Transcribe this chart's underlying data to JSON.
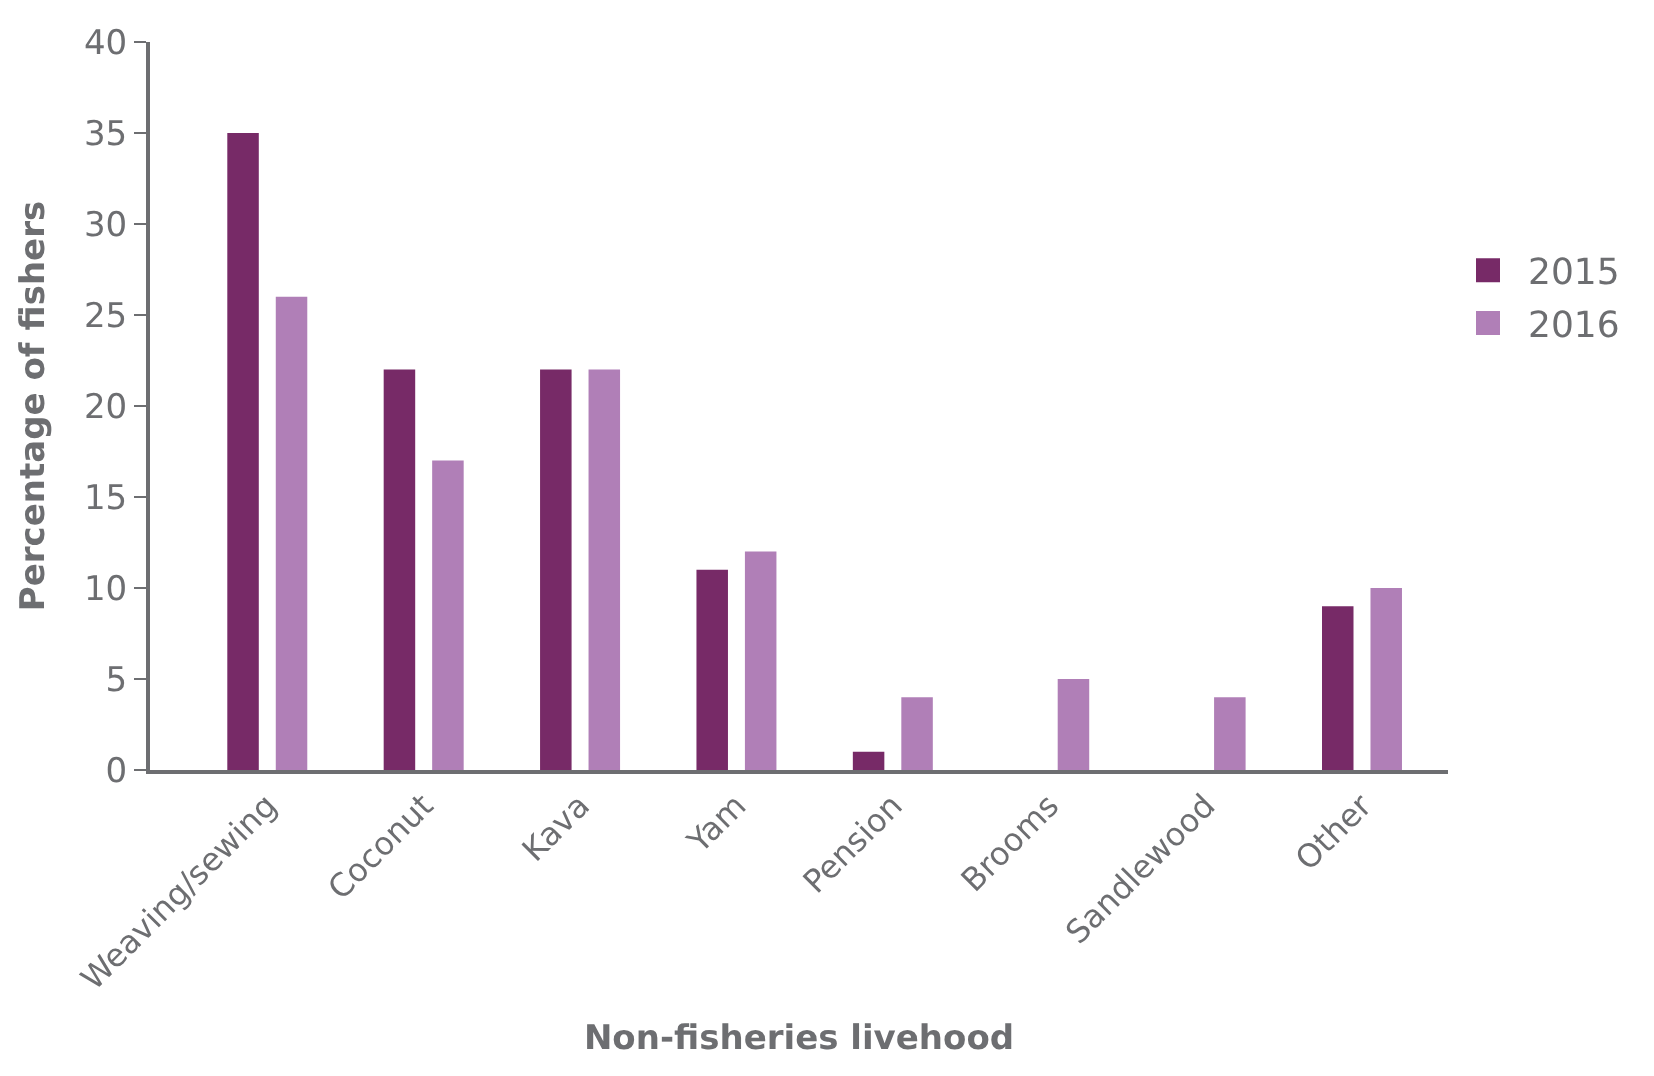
{
  "chart_data": {
    "type": "bar",
    "xlabel": "Non-fisheries livehood",
    "ylabel": "Percentage of fishers",
    "categories": [
      "Weaving/sewing",
      "Coconut",
      "Kava",
      "Yam",
      "Pension",
      "Brooms",
      "Sandlewood",
      "Other"
    ],
    "series": [
      {
        "name": "2015",
        "color": "#772a67",
        "values": [
          35,
          22,
          22,
          11,
          1,
          0,
          0,
          9
        ]
      },
      {
        "name": "2016",
        "color": "#b07fb7",
        "values": [
          26,
          17,
          22,
          12,
          4,
          5,
          4,
          10
        ]
      }
    ],
    "ylim": [
      0,
      40
    ],
    "yticks": [
      0,
      5,
      10,
      15,
      20,
      25,
      30,
      35,
      40
    ],
    "legend": "right"
  }
}
